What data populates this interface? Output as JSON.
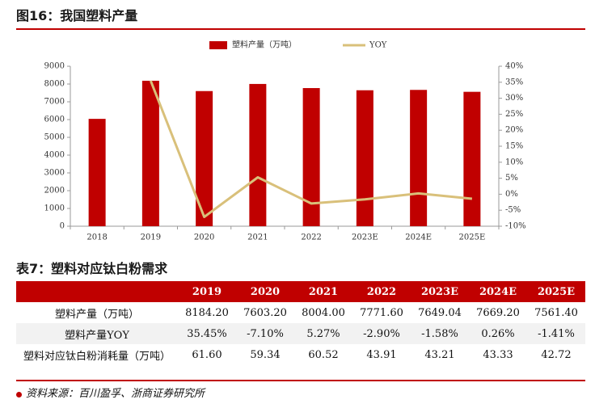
{
  "figure_title": "图16：我国塑料产量",
  "table_title": "表7：塑料对应钛白粉需求",
  "source": "资料来源：百川盈孚、浙商证券研究所",
  "colors": {
    "bar": "#c00000",
    "line": "#d9c07a",
    "header_bg": "#c00000",
    "rule": "#c00000"
  },
  "chart_data": {
    "type": "bar",
    "categories": [
      "2018",
      "2019",
      "2020",
      "2021",
      "2022",
      "2023E",
      "2024E",
      "2025E"
    ],
    "series": [
      {
        "name": "塑料产量（万吨）",
        "type": "bar",
        "axis": "left",
        "values": [
          6040,
          8184.2,
          7603.2,
          8004.0,
          7771.6,
          7649.04,
          7669.2,
          7561.4
        ]
      },
      {
        "name": "YOY",
        "type": "line",
        "axis": "right",
        "values": [
          null,
          35.45,
          -7.1,
          5.27,
          -2.9,
          -1.58,
          0.26,
          -1.41
        ]
      }
    ],
    "y_left": {
      "min": 0,
      "max": 9000,
      "ticks": [
        "0",
        "1000",
        "2000",
        "3000",
        "4000",
        "5000",
        "6000",
        "7000",
        "8000",
        "9000"
      ]
    },
    "y_right": {
      "min": -10,
      "max": 40,
      "ticks": [
        "-10%",
        "-5%",
        "0%",
        "5%",
        "10%",
        "15%",
        "20%",
        "25%",
        "30%",
        "35%",
        "40%"
      ]
    },
    "legend_position": "top-center",
    "grid": false
  },
  "table": {
    "headers": [
      "",
      "2019",
      "2020",
      "2021",
      "2022",
      "2023E",
      "2024E",
      "2025E"
    ],
    "rows": [
      {
        "label": "塑料产量（万吨）",
        "values": [
          "8184.20",
          "7603.20",
          "8004.00",
          "7771.60",
          "7649.04",
          "7669.20",
          "7561.40"
        ]
      },
      {
        "label": "塑料产量YOY",
        "values": [
          "35.45%",
          "-7.10%",
          "5.27%",
          "-2.90%",
          "-1.58%",
          "0.26%",
          "-1.41%"
        ]
      },
      {
        "label": "塑料对应钛白粉消耗量（万吨）",
        "values": [
          "61.60",
          "59.34",
          "60.52",
          "43.91",
          "43.21",
          "43.33",
          "42.72"
        ]
      }
    ]
  }
}
